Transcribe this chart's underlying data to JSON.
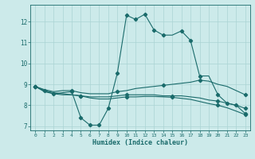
{
  "xlabel": "Humidex (Indice chaleur)",
  "ylabel": "",
  "bg_color": "#cceaea",
  "line_color": "#1a6b6b",
  "grid_color": "#aad4d4",
  "xlim": [
    -0.5,
    23.5
  ],
  "ylim": [
    6.8,
    12.8
  ],
  "yticks": [
    7,
    8,
    9,
    10,
    11,
    12
  ],
  "xticks": [
    0,
    1,
    2,
    3,
    4,
    5,
    6,
    7,
    8,
    9,
    10,
    11,
    12,
    13,
    14,
    15,
    16,
    17,
    18,
    19,
    20,
    21,
    22,
    23
  ],
  "series": {
    "line1_x": [
      0,
      1,
      2,
      3,
      4,
      5,
      6,
      7,
      8,
      9,
      10,
      11,
      12,
      13,
      14,
      15,
      16,
      17,
      18,
      19,
      20,
      21,
      22,
      23
    ],
    "line1_y": [
      8.9,
      8.7,
      8.55,
      8.6,
      8.65,
      7.4,
      7.05,
      7.05,
      7.85,
      9.55,
      12.3,
      12.1,
      12.35,
      11.6,
      11.35,
      11.35,
      11.55,
      11.1,
      9.4,
      9.4,
      8.5,
      8.1,
      8.0,
      7.6
    ],
    "line2_x": [
      0,
      1,
      2,
      3,
      4,
      5,
      6,
      7,
      8,
      9,
      10,
      11,
      12,
      13,
      14,
      15,
      16,
      17,
      18,
      19,
      20,
      21,
      22,
      23
    ],
    "line2_y": [
      8.9,
      8.75,
      8.65,
      8.7,
      8.7,
      8.6,
      8.55,
      8.55,
      8.55,
      8.65,
      8.7,
      8.8,
      8.85,
      8.9,
      8.95,
      9.0,
      9.05,
      9.1,
      9.2,
      9.15,
      9.0,
      8.9,
      8.7,
      8.5
    ],
    "line3_x": [
      0,
      1,
      2,
      3,
      4,
      5,
      6,
      7,
      8,
      9,
      10,
      11,
      12,
      13,
      14,
      15,
      16,
      17,
      18,
      19,
      20,
      21,
      22,
      23
    ],
    "line3_y": [
      8.9,
      8.7,
      8.6,
      8.55,
      8.5,
      8.45,
      8.4,
      8.4,
      8.4,
      8.45,
      8.5,
      8.5,
      8.5,
      8.5,
      8.45,
      8.45,
      8.45,
      8.4,
      8.35,
      8.25,
      8.2,
      8.1,
      8.0,
      7.85
    ],
    "line4_x": [
      0,
      1,
      2,
      3,
      4,
      5,
      6,
      7,
      8,
      9,
      10,
      11,
      12,
      13,
      14,
      15,
      16,
      17,
      18,
      19,
      20,
      21,
      22,
      23
    ],
    "line4_y": [
      8.9,
      8.65,
      8.55,
      8.5,
      8.5,
      8.45,
      8.35,
      8.3,
      8.3,
      8.35,
      8.4,
      8.4,
      8.42,
      8.42,
      8.4,
      8.38,
      8.33,
      8.28,
      8.18,
      8.08,
      8.0,
      7.88,
      7.72,
      7.55
    ],
    "markers1": [
      [
        0,
        8.9
      ],
      [
        1,
        8.7
      ],
      [
        2,
        8.55
      ],
      [
        4,
        8.65
      ],
      [
        5,
        7.4
      ],
      [
        6,
        7.05
      ],
      [
        7,
        7.05
      ],
      [
        8,
        7.85
      ],
      [
        9,
        9.55
      ],
      [
        10,
        12.3
      ],
      [
        11,
        12.1
      ],
      [
        12,
        12.35
      ],
      [
        13,
        11.6
      ],
      [
        14,
        11.35
      ],
      [
        16,
        11.55
      ],
      [
        17,
        11.1
      ],
      [
        18,
        9.4
      ],
      [
        20,
        8.5
      ],
      [
        21,
        8.1
      ],
      [
        22,
        8.0
      ],
      [
        23,
        7.6
      ]
    ],
    "markers2": [
      [
        0,
        8.9
      ],
      [
        4,
        8.7
      ],
      [
        9,
        8.65
      ],
      [
        14,
        8.95
      ],
      [
        18,
        9.2
      ],
      [
        23,
        8.5
      ]
    ],
    "markers3": [
      [
        0,
        8.9
      ],
      [
        5,
        8.45
      ],
      [
        10,
        8.5
      ],
      [
        15,
        8.45
      ],
      [
        20,
        8.2
      ],
      [
        23,
        7.85
      ]
    ],
    "markers4": [
      [
        0,
        8.9
      ],
      [
        5,
        8.45
      ],
      [
        10,
        8.4
      ],
      [
        15,
        8.38
      ],
      [
        20,
        8.0
      ],
      [
        23,
        7.55
      ]
    ]
  }
}
